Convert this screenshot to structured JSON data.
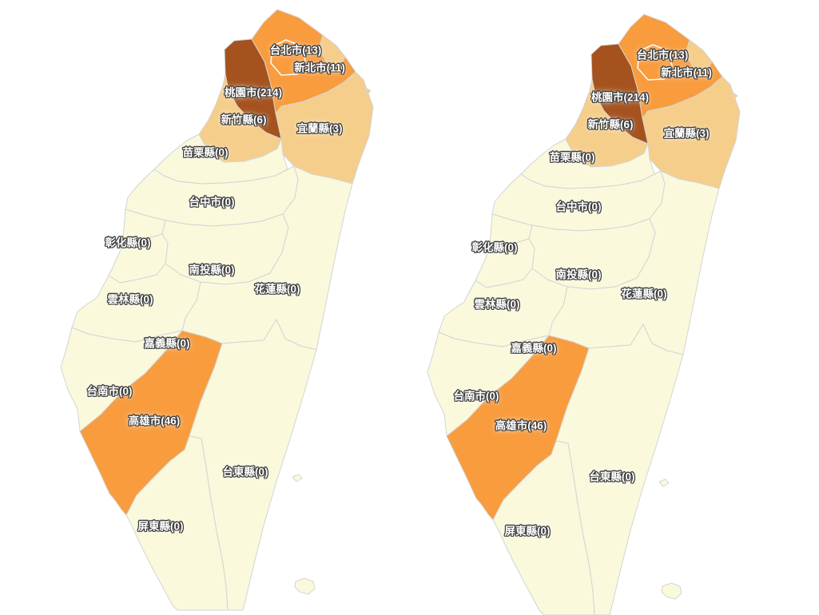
{
  "page": {
    "background_color": "#FFFFFF"
  },
  "palette": {
    "value_zero_fill": "#FAF9DC",
    "value_low_fill": "#F5CE8B",
    "value_mid_fill": "#F89C3E",
    "value_high_fill": "#A5521E",
    "county_border": "#D4D4D4",
    "enclave_border": "#FBFBF5",
    "label_text_color": "#FFFFFF",
    "label_outline_color": "#3C3C3C"
  },
  "maps": [
    {
      "id": "map-left",
      "name": "taiwan-choropleth-left"
    },
    {
      "id": "map-right",
      "name": "taiwan-choropleth-right"
    }
  ],
  "regions": [
    {
      "id": "taipei",
      "name_zh": "台北市",
      "label": "台北市(13)",
      "value": 13,
      "tone": "mid"
    },
    {
      "id": "new-taipei",
      "name_zh": "新北市",
      "label": "新北市(11)",
      "value": 11,
      "tone": "mid"
    },
    {
      "id": "taoyuan",
      "name_zh": "桃園市",
      "label": "桃園市(214)",
      "value": 214,
      "tone": "high"
    },
    {
      "id": "hsinchu",
      "name_zh": "新竹縣",
      "label": "新竹縣(6)",
      "value": 6,
      "tone": "low"
    },
    {
      "id": "yilan",
      "name_zh": "宜蘭縣",
      "label": "宜蘭縣(3)",
      "value": 3,
      "tone": "low"
    },
    {
      "id": "miaoli",
      "name_zh": "苗栗縣",
      "label": "苗栗縣(0)",
      "value": 0,
      "tone": "zero"
    },
    {
      "id": "taichung",
      "name_zh": "台中市",
      "label": "台中市(0)",
      "value": 0,
      "tone": "zero"
    },
    {
      "id": "changhua",
      "name_zh": "彰化縣",
      "label": "彰化縣(0)",
      "value": 0,
      "tone": "zero"
    },
    {
      "id": "nantou",
      "name_zh": "南投縣",
      "label": "南投縣(0)",
      "value": 0,
      "tone": "zero"
    },
    {
      "id": "hualien",
      "name_zh": "花蓮縣",
      "label": "花蓮縣(0)",
      "value": 0,
      "tone": "zero"
    },
    {
      "id": "yunlin",
      "name_zh": "雲林縣",
      "label": "雲林縣(0)",
      "value": 0,
      "tone": "zero"
    },
    {
      "id": "chiayi",
      "name_zh": "嘉義縣",
      "label": "嘉義縣(0)",
      "value": 0,
      "tone": "zero"
    },
    {
      "id": "tainan",
      "name_zh": "台南市",
      "label": "台南市(0)",
      "value": 0,
      "tone": "zero"
    },
    {
      "id": "kaohsiung",
      "name_zh": "高雄市",
      "label": "高雄市(46)",
      "value": 46,
      "tone": "mid"
    },
    {
      "id": "taitung",
      "name_zh": "台東縣",
      "label": "台東縣(0)",
      "value": 0,
      "tone": "zero"
    },
    {
      "id": "pingtung",
      "name_zh": "屏東縣",
      "label": "屏東縣(0)",
      "value": 0,
      "tone": "zero"
    }
  ],
  "unlabeled_areas": [
    {
      "id": "northeast-coast-area",
      "tone": "low"
    }
  ],
  "islands": [
    {
      "id": "guishan-islet",
      "tone": "low"
    },
    {
      "id": "green-island",
      "tone": "zero"
    },
    {
      "id": "orchid-island",
      "tone": "zero"
    }
  ]
}
